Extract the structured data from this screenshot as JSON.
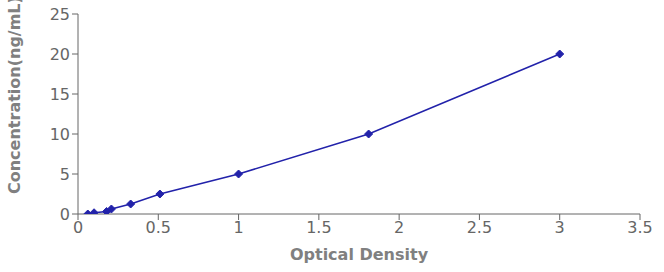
{
  "chart_data": {
    "type": "line",
    "x": [
      0.061,
      0.1,
      0.178,
      0.208,
      0.328,
      0.51,
      1.0,
      1.81,
      3.0
    ],
    "values": [
      0.0,
      0.156,
      0.312,
      0.625,
      1.25,
      2.5,
      5.0,
      10.0,
      20.0
    ],
    "color": "#2222aa",
    "marker": "diamond",
    "line_style": "solid",
    "xlabel": "Optical Density",
    "ylabel": "Concentration(ng/mL)",
    "xlim": [
      0,
      3.5
    ],
    "ylim": [
      0,
      25
    ],
    "xticks": [
      0,
      0.5,
      1,
      1.5,
      2,
      2.5,
      3,
      3.5
    ],
    "yticks": [
      0,
      5,
      10,
      15,
      20,
      25
    ],
    "grid": false
  }
}
